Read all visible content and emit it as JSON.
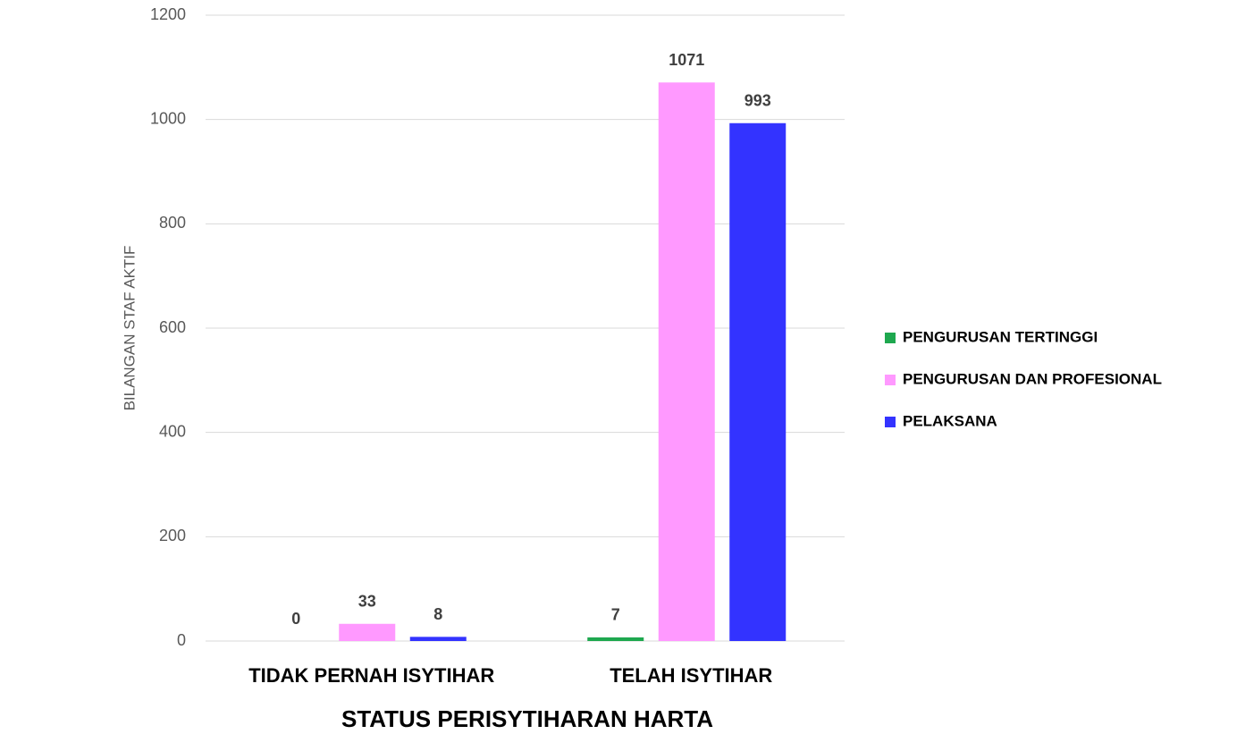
{
  "chart_data": {
    "type": "bar",
    "x_label": "STATUS PERISYTIHARAN HARTA",
    "y_label": "BILANGAN STAF AKTIF",
    "categories": [
      "TIDAK PERNAH ISYTIHAR",
      "TELAH ISYTIHAR"
    ],
    "series": [
      {
        "name": "PENGURUSAN TERTINGGI",
        "color": "#1ea84f",
        "values": [
          0,
          7
        ]
      },
      {
        "name": "PENGURUSAN DAN PROFESIONAL",
        "color": "#ff99ff",
        "values": [
          33,
          1071
        ]
      },
      {
        "name": "PELAKSANA",
        "color": "#3333ff",
        "values": [
          8,
          993
        ]
      }
    ],
    "ylim": [
      0,
      1200
    ],
    "yticks": [
      0,
      200,
      400,
      600,
      800,
      1000,
      1200
    ],
    "grid": true,
    "legend": "right",
    "data_labels": true
  }
}
